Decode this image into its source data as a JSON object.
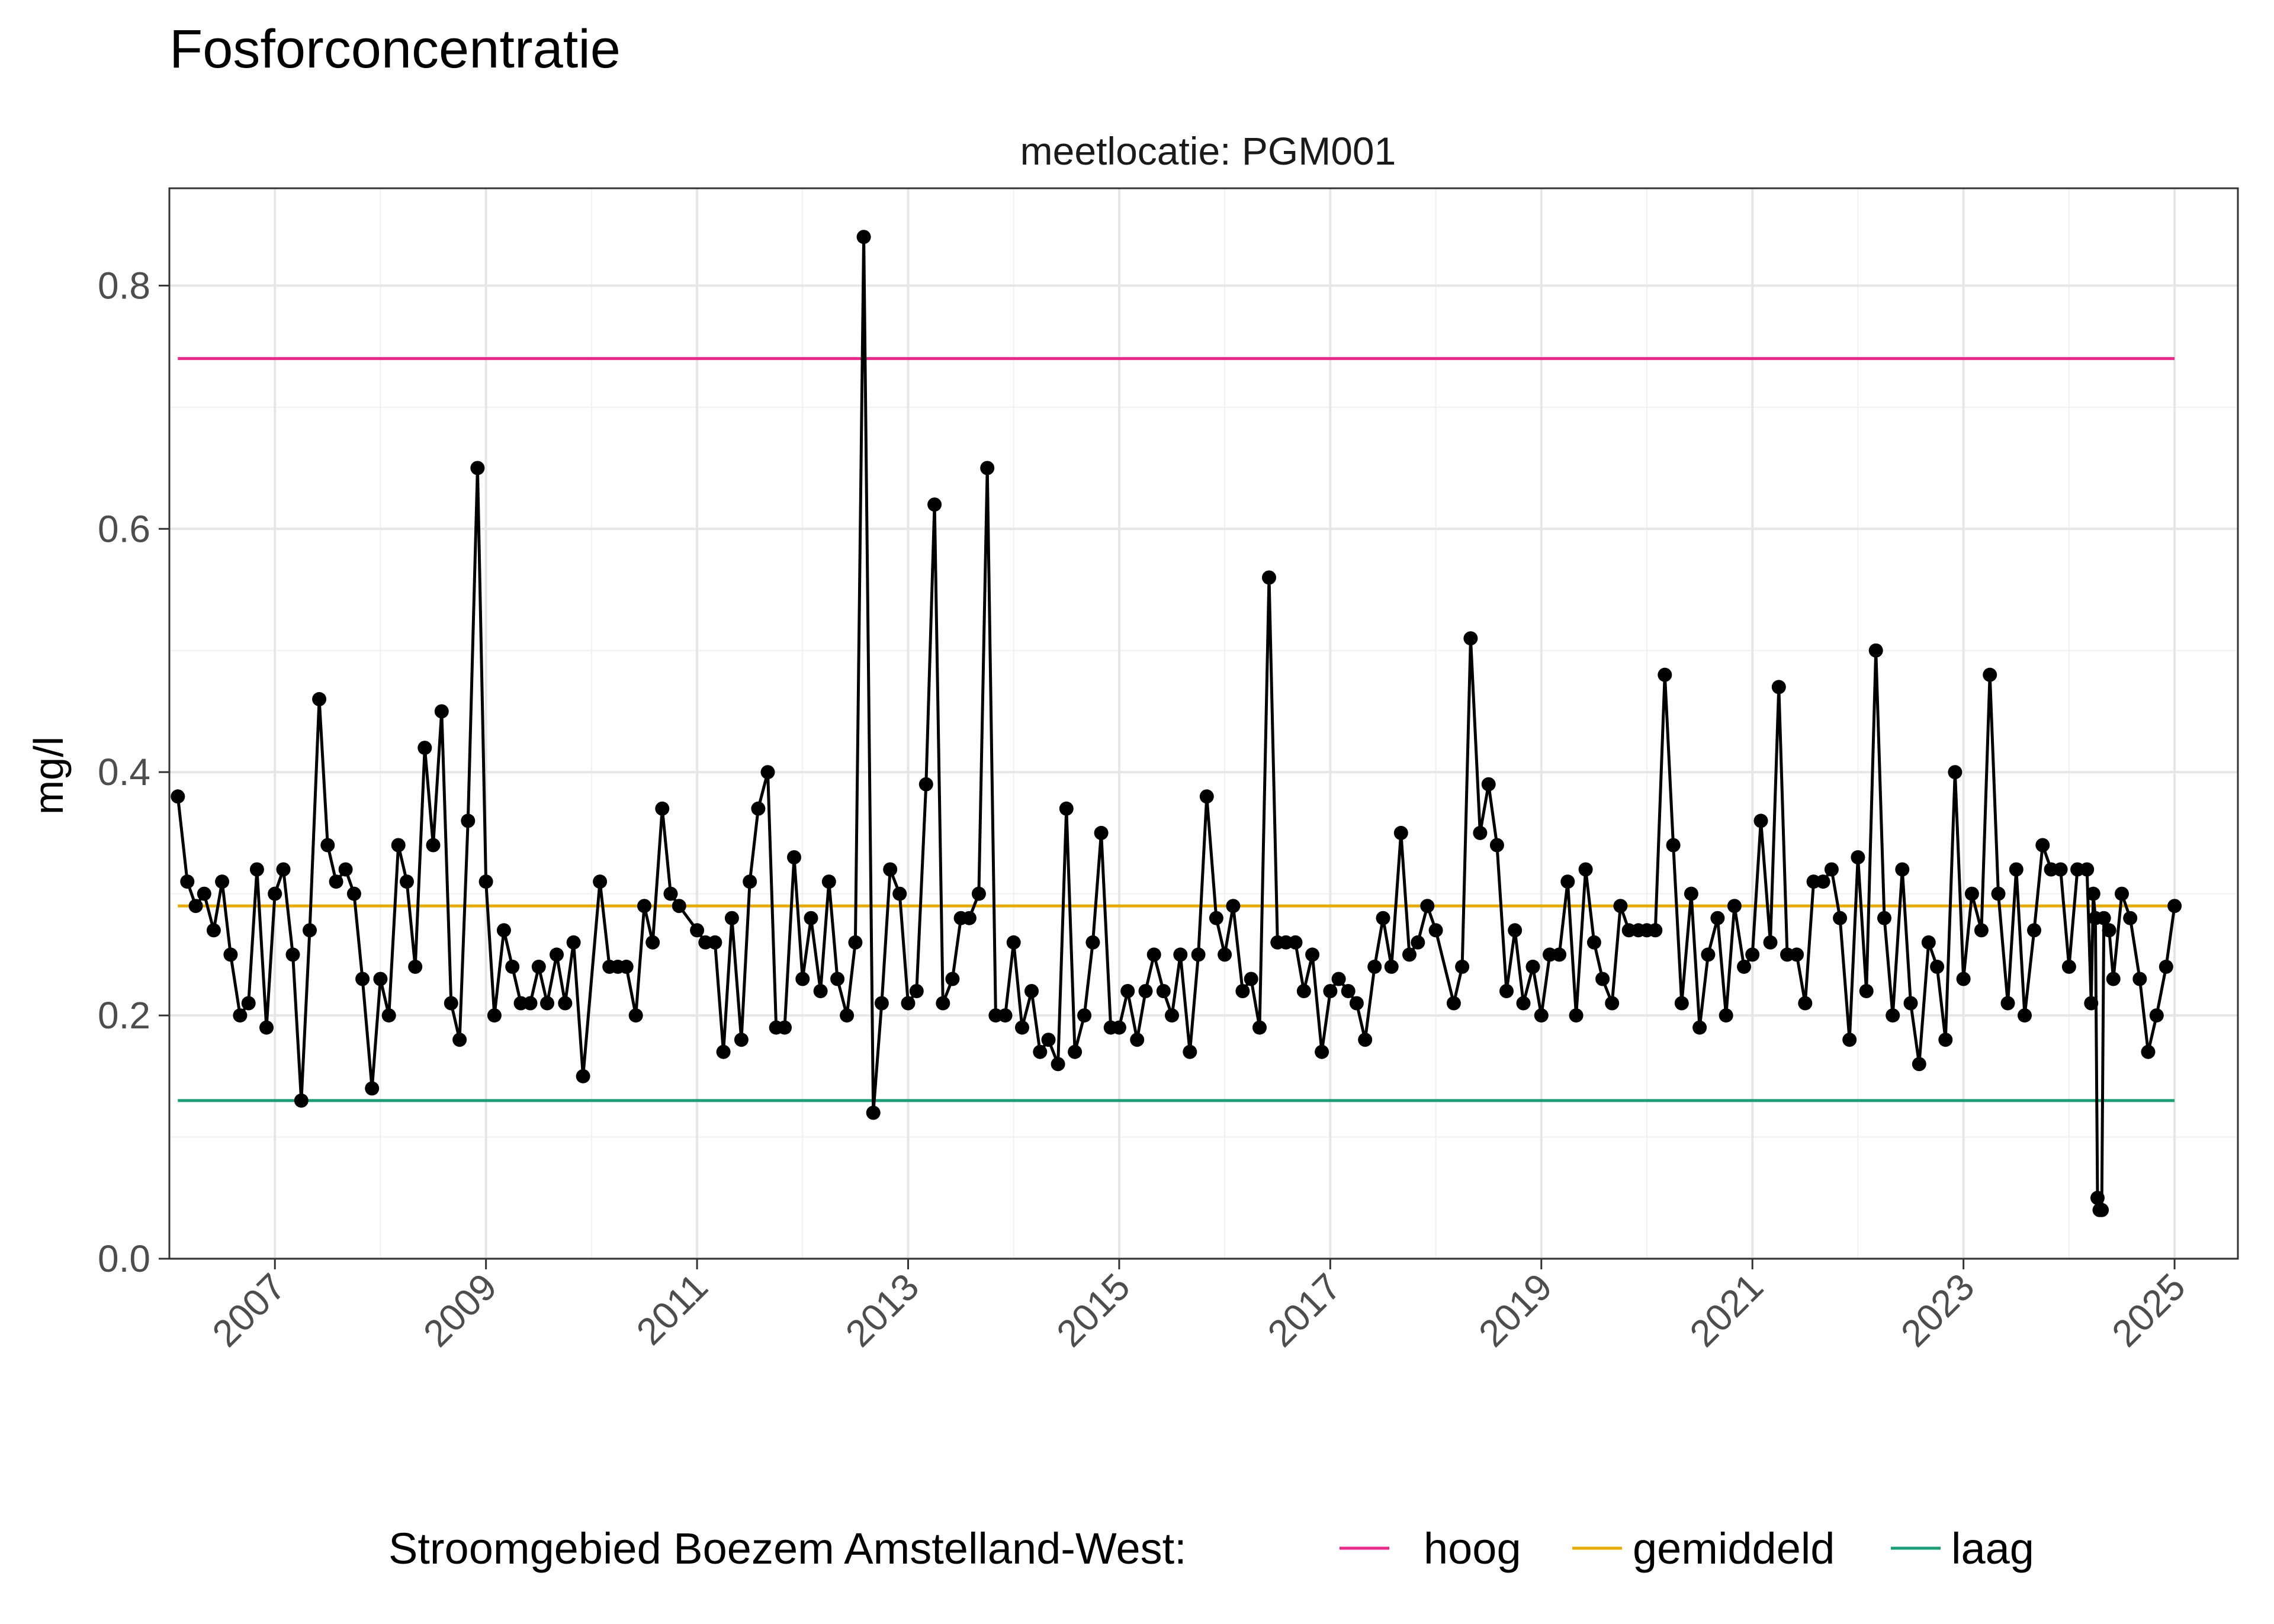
{
  "chart_data": {
    "type": "line",
    "title": "Fosforconcentratie",
    "facet_label": "meetlocatie: PGM001",
    "xlabel": "",
    "ylabel": "mg/l",
    "xlim": [
      2006.0,
      2025.6
    ],
    "ylim": [
      0.0,
      0.88
    ],
    "x_ticks": [
      2007,
      2009,
      2011,
      2013,
      2015,
      2017,
      2019,
      2021,
      2023,
      2025
    ],
    "y_ticks": [
      0.0,
      0.2,
      0.4,
      0.6,
      0.8
    ],
    "x_tick_labels": [
      "2007",
      "2009",
      "2011",
      "2013",
      "2015",
      "2017",
      "2019",
      "2021",
      "2023",
      "2025"
    ],
    "y_tick_labels": [
      "0.0",
      "0.2",
      "0.4",
      "0.6",
      "0.8"
    ],
    "grid": true,
    "legend_position": "bottom",
    "legend_title": "Stroomgebied Boezem Amstelland-West:",
    "reference_lines": [
      {
        "name": "hoog",
        "value": 0.74,
        "color": "#e7298a"
      },
      {
        "name": "gemiddeld",
        "value": 0.29,
        "color": "#e6ab02"
      },
      {
        "name": "laag",
        "value": 0.13,
        "color": "#1b9e77"
      }
    ],
    "reference_x_range": [
      2006.08,
      2025.0
    ],
    "series": [
      {
        "color": "#000000",
        "points": [
          [
            2006.08,
            0.38
          ],
          [
            2006.17,
            0.31
          ],
          [
            2006.25,
            0.29
          ],
          [
            2006.33,
            0.3
          ],
          [
            2006.42,
            0.27
          ],
          [
            2006.5,
            0.31
          ],
          [
            2006.58,
            0.25
          ],
          [
            2006.67,
            0.2
          ],
          [
            2006.75,
            0.21
          ],
          [
            2006.83,
            0.32
          ],
          [
            2006.92,
            0.19
          ],
          [
            2007.0,
            0.3
          ],
          [
            2007.08,
            0.32
          ],
          [
            2007.17,
            0.25
          ],
          [
            2007.25,
            0.13
          ],
          [
            2007.33,
            0.27
          ],
          [
            2007.42,
            0.46
          ],
          [
            2007.5,
            0.34
          ],
          [
            2007.58,
            0.31
          ],
          [
            2007.67,
            0.32
          ],
          [
            2007.75,
            0.3
          ],
          [
            2007.83,
            0.23
          ],
          [
            2007.92,
            0.14
          ],
          [
            2008.0,
            0.23
          ],
          [
            2008.08,
            0.2
          ],
          [
            2008.17,
            0.34
          ],
          [
            2008.25,
            0.31
          ],
          [
            2008.33,
            0.24
          ],
          [
            2008.42,
            0.42
          ],
          [
            2008.5,
            0.34
          ],
          [
            2008.58,
            0.45
          ],
          [
            2008.67,
            0.21
          ],
          [
            2008.75,
            0.18
          ],
          [
            2008.83,
            0.36
          ],
          [
            2008.92,
            0.65
          ],
          [
            2009.0,
            0.31
          ],
          [
            2009.08,
            0.2
          ],
          [
            2009.17,
            0.27
          ],
          [
            2009.25,
            0.24
          ],
          [
            2009.33,
            0.21
          ],
          [
            2009.42,
            0.21
          ],
          [
            2009.5,
            0.24
          ],
          [
            2009.58,
            0.21
          ],
          [
            2009.67,
            0.25
          ],
          [
            2009.75,
            0.21
          ],
          [
            2009.83,
            0.26
          ],
          [
            2009.92,
            0.15
          ],
          [
            2010.08,
            0.31
          ],
          [
            2010.17,
            0.24
          ],
          [
            2010.25,
            0.24
          ],
          [
            2010.33,
            0.24
          ],
          [
            2010.42,
            0.2
          ],
          [
            2010.5,
            0.29
          ],
          [
            2010.58,
            0.26
          ],
          [
            2010.67,
            0.37
          ],
          [
            2010.75,
            0.3
          ],
          [
            2010.83,
            0.29
          ],
          [
            2011.0,
            0.27
          ],
          [
            2011.08,
            0.26
          ],
          [
            2011.17,
            0.26
          ],
          [
            2011.25,
            0.17
          ],
          [
            2011.33,
            0.28
          ],
          [
            2011.42,
            0.18
          ],
          [
            2011.5,
            0.31
          ],
          [
            2011.58,
            0.37
          ],
          [
            2011.67,
            0.4
          ],
          [
            2011.75,
            0.19
          ],
          [
            2011.83,
            0.19
          ],
          [
            2011.92,
            0.33
          ],
          [
            2012.0,
            0.23
          ],
          [
            2012.08,
            0.28
          ],
          [
            2012.17,
            0.22
          ],
          [
            2012.25,
            0.31
          ],
          [
            2012.33,
            0.23
          ],
          [
            2012.42,
            0.2
          ],
          [
            2012.5,
            0.26
          ],
          [
            2012.58,
            0.84
          ],
          [
            2012.67,
            0.12
          ],
          [
            2012.75,
            0.21
          ],
          [
            2012.83,
            0.32
          ],
          [
            2012.92,
            0.3
          ],
          [
            2013.0,
            0.21
          ],
          [
            2013.08,
            0.22
          ],
          [
            2013.17,
            0.39
          ],
          [
            2013.25,
            0.62
          ],
          [
            2013.33,
            0.21
          ],
          [
            2013.42,
            0.23
          ],
          [
            2013.5,
            0.28
          ],
          [
            2013.58,
            0.28
          ],
          [
            2013.67,
            0.3
          ],
          [
            2013.75,
            0.65
          ],
          [
            2013.83,
            0.2
          ],
          [
            2013.92,
            0.2
          ],
          [
            2014.0,
            0.26
          ],
          [
            2014.08,
            0.19
          ],
          [
            2014.17,
            0.22
          ],
          [
            2014.25,
            0.17
          ],
          [
            2014.33,
            0.18
          ],
          [
            2014.42,
            0.16
          ],
          [
            2014.5,
            0.37
          ],
          [
            2014.58,
            0.17
          ],
          [
            2014.67,
            0.2
          ],
          [
            2014.75,
            0.26
          ],
          [
            2014.83,
            0.35
          ],
          [
            2014.92,
            0.19
          ],
          [
            2015.0,
            0.19
          ],
          [
            2015.08,
            0.22
          ],
          [
            2015.17,
            0.18
          ],
          [
            2015.25,
            0.22
          ],
          [
            2015.33,
            0.25
          ],
          [
            2015.42,
            0.22
          ],
          [
            2015.5,
            0.2
          ],
          [
            2015.58,
            0.25
          ],
          [
            2015.67,
            0.17
          ],
          [
            2015.75,
            0.25
          ],
          [
            2015.83,
            0.38
          ],
          [
            2015.92,
            0.28
          ],
          [
            2016.0,
            0.25
          ],
          [
            2016.08,
            0.29
          ],
          [
            2016.17,
            0.22
          ],
          [
            2016.25,
            0.23
          ],
          [
            2016.33,
            0.19
          ],
          [
            2016.42,
            0.56
          ],
          [
            2016.5,
            0.26
          ],
          [
            2016.58,
            0.26
          ],
          [
            2016.67,
            0.26
          ],
          [
            2016.75,
            0.22
          ],
          [
            2016.83,
            0.25
          ],
          [
            2016.92,
            0.17
          ],
          [
            2017.0,
            0.22
          ],
          [
            2017.08,
            0.23
          ],
          [
            2017.17,
            0.22
          ],
          [
            2017.25,
            0.21
          ],
          [
            2017.33,
            0.18
          ],
          [
            2017.42,
            0.24
          ],
          [
            2017.5,
            0.28
          ],
          [
            2017.58,
            0.24
          ],
          [
            2017.67,
            0.35
          ],
          [
            2017.75,
            0.25
          ],
          [
            2017.83,
            0.26
          ],
          [
            2017.92,
            0.29
          ],
          [
            2018.0,
            0.27
          ],
          [
            2018.17,
            0.21
          ],
          [
            2018.25,
            0.24
          ],
          [
            2018.33,
            0.51
          ],
          [
            2018.42,
            0.35
          ],
          [
            2018.5,
            0.39
          ],
          [
            2018.58,
            0.34
          ],
          [
            2018.67,
            0.22
          ],
          [
            2018.75,
            0.27
          ],
          [
            2018.83,
            0.21
          ],
          [
            2018.92,
            0.24
          ],
          [
            2019.0,
            0.2
          ],
          [
            2019.08,
            0.25
          ],
          [
            2019.17,
            0.25
          ],
          [
            2019.25,
            0.31
          ],
          [
            2019.33,
            0.2
          ],
          [
            2019.42,
            0.32
          ],
          [
            2019.5,
            0.26
          ],
          [
            2019.58,
            0.23
          ],
          [
            2019.67,
            0.21
          ],
          [
            2019.75,
            0.29
          ],
          [
            2019.83,
            0.27
          ],
          [
            2019.92,
            0.27
          ],
          [
            2020.0,
            0.27
          ],
          [
            2020.08,
            0.27
          ],
          [
            2020.17,
            0.48
          ],
          [
            2020.25,
            0.34
          ],
          [
            2020.33,
            0.21
          ],
          [
            2020.42,
            0.3
          ],
          [
            2020.5,
            0.19
          ],
          [
            2020.58,
            0.25
          ],
          [
            2020.67,
            0.28
          ],
          [
            2020.75,
            0.2
          ],
          [
            2020.83,
            0.29
          ],
          [
            2020.92,
            0.24
          ],
          [
            2021.0,
            0.25
          ],
          [
            2021.08,
            0.36
          ],
          [
            2021.17,
            0.26
          ],
          [
            2021.25,
            0.47
          ],
          [
            2021.33,
            0.25
          ],
          [
            2021.42,
            0.25
          ],
          [
            2021.5,
            0.21
          ],
          [
            2021.58,
            0.31
          ],
          [
            2021.67,
            0.31
          ],
          [
            2021.75,
            0.32
          ],
          [
            2021.83,
            0.28
          ],
          [
            2021.92,
            0.18
          ],
          [
            2022.0,
            0.33
          ],
          [
            2022.08,
            0.22
          ],
          [
            2022.17,
            0.5
          ],
          [
            2022.25,
            0.28
          ],
          [
            2022.33,
            0.2
          ],
          [
            2022.42,
            0.32
          ],
          [
            2022.5,
            0.21
          ],
          [
            2022.58,
            0.16
          ],
          [
            2022.67,
            0.26
          ],
          [
            2022.75,
            0.24
          ],
          [
            2022.83,
            0.18
          ],
          [
            2022.92,
            0.4
          ],
          [
            2023.0,
            0.23
          ],
          [
            2023.08,
            0.3
          ],
          [
            2023.17,
            0.27
          ],
          [
            2023.25,
            0.48
          ],
          [
            2023.33,
            0.3
          ],
          [
            2023.42,
            0.21
          ],
          [
            2023.5,
            0.32
          ],
          [
            2023.58,
            0.2
          ],
          [
            2023.67,
            0.27
          ],
          [
            2023.75,
            0.34
          ],
          [
            2023.83,
            0.32
          ],
          [
            2023.92,
            0.32
          ],
          [
            2024.0,
            0.24
          ],
          [
            2024.08,
            0.32
          ],
          [
            2024.17,
            0.32
          ],
          [
            2024.21,
            0.21
          ],
          [
            2024.23,
            0.3
          ],
          [
            2024.25,
            0.28
          ],
          [
            2024.27,
            0.05
          ],
          [
            2024.29,
            0.04
          ],
          [
            2024.31,
            0.04
          ],
          [
            2024.33,
            0.28
          ],
          [
            2024.38,
            0.27
          ],
          [
            2024.42,
            0.23
          ],
          [
            2024.5,
            0.3
          ],
          [
            2024.58,
            0.28
          ],
          [
            2024.67,
            0.23
          ],
          [
            2024.75,
            0.17
          ],
          [
            2024.83,
            0.2
          ],
          [
            2024.92,
            0.24
          ],
          [
            2025.0,
            0.29
          ]
        ]
      }
    ]
  }
}
